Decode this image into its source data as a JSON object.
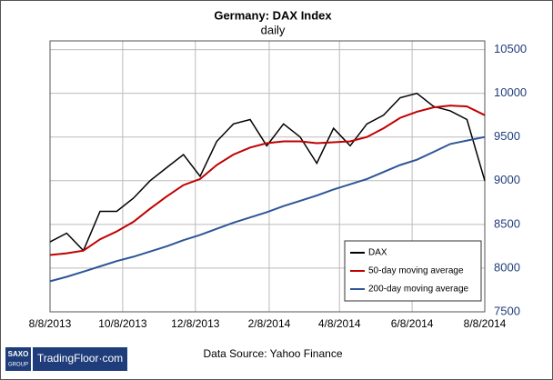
{
  "chart_data": {
    "type": "line",
    "title": "Germany: DAX Index",
    "subtitle": "daily",
    "x": [
      "8/8/2013",
      "8/22/2013",
      "9/5/2013",
      "9/19/2013",
      "10/3/2013",
      "10/17/2013",
      "10/31/2013",
      "11/14/2013",
      "11/28/2013",
      "12/12/2013",
      "12/26/2013",
      "1/9/2014",
      "1/23/2014",
      "2/6/2014",
      "2/20/2014",
      "3/6/2014",
      "3/20/2014",
      "4/3/2014",
      "4/17/2014",
      "5/1/2014",
      "5/15/2014",
      "5/29/2014",
      "6/12/2014",
      "6/26/2014",
      "7/10/2014",
      "7/24/2014",
      "8/8/2014"
    ],
    "series": [
      {
        "name": "DAX",
        "color": "#000000",
        "values": [
          8300,
          8400,
          8200,
          8650,
          8650,
          8800,
          9000,
          9150,
          9300,
          9050,
          9450,
          9650,
          9700,
          9400,
          9650,
          9500,
          9200,
          9600,
          9400,
          9650,
          9750,
          9950,
          10000,
          9850,
          9800,
          9700,
          9000
        ]
      },
      {
        "name": "50-day moving average",
        "color": "#c00000",
        "values": [
          8150,
          8170,
          8200,
          8330,
          8420,
          8530,
          8680,
          8820,
          8950,
          9020,
          9180,
          9300,
          9380,
          9430,
          9450,
          9450,
          9430,
          9440,
          9450,
          9500,
          9600,
          9720,
          9790,
          9840,
          9860,
          9850,
          9750
        ]
      },
      {
        "name": "200-day moving average",
        "color": "#2e5597",
        "values": [
          7850,
          7900,
          7960,
          8020,
          8080,
          8130,
          8190,
          8250,
          8320,
          8380,
          8450,
          8520,
          8580,
          8640,
          8710,
          8770,
          8830,
          8900,
          8960,
          9020,
          9100,
          9180,
          9240,
          9330,
          9420,
          9460,
          9500
        ]
      }
    ],
    "xlim": [
      "8/8/2013",
      "8/8/2014"
    ],
    "xticks": [
      "8/8/2013",
      "10/8/2013",
      "12/8/2013",
      "2/8/2014",
      "4/8/2014",
      "6/8/2014",
      "8/8/2014"
    ],
    "ylim": [
      7500,
      10600
    ],
    "yticks": [
      7500,
      8000,
      8500,
      9000,
      9500,
      10000,
      10500
    ],
    "grid": true,
    "legend": "lower right",
    "source": "Data Source: Yahoo Finance",
    "brand": [
      "SAXO",
      "GROUP",
      "TradingFloor·com"
    ]
  }
}
